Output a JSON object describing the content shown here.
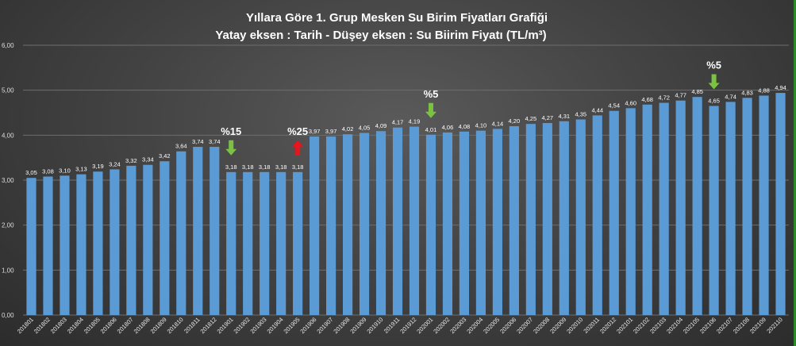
{
  "chart_data": {
    "type": "bar",
    "title": "Yıllara Göre 1. Grup Mesken Su Birim Fiyatları Grafiği",
    "subtitle": "Yatay eksen : Tarih - Düşey eksen : Su Biirim Fiyatı (TL/m³)",
    "xlabel": "Tarih",
    "ylabel": "Su Biirim Fiyatı (TL/m³)",
    "ylim": [
      0,
      6
    ],
    "yticks": [
      "0,00",
      "1,00",
      "2,00",
      "3,00",
      "4,00",
      "5,00",
      "6,00"
    ],
    "grid": true,
    "bar_color": "#5b9bd5",
    "categories": [
      "201801",
      "201802",
      "201803",
      "201804",
      "201805",
      "201806",
      "201807",
      "201808",
      "201809",
      "201810",
      "201811",
      "201812",
      "201901",
      "201902",
      "201903",
      "201904",
      "201905",
      "201906",
      "201907",
      "201908",
      "201909",
      "201910",
      "201911",
      "201912",
      "202001",
      "202002",
      "202003",
      "202004",
      "202005",
      "202006",
      "202007",
      "202008",
      "202009",
      "202010",
      "202011",
      "202012",
      "202101",
      "202102",
      "202103",
      "202104",
      "202105",
      "202106",
      "202107",
      "202108",
      "202109",
      "202110"
    ],
    "values": [
      3.05,
      3.08,
      3.1,
      3.13,
      3.19,
      3.24,
      3.32,
      3.34,
      3.42,
      3.64,
      3.74,
      3.74,
      3.18,
      3.18,
      3.18,
      3.18,
      3.18,
      3.97,
      3.97,
      4.02,
      4.05,
      4.09,
      4.17,
      4.19,
      4.01,
      4.06,
      4.08,
      4.1,
      4.14,
      4.2,
      4.25,
      4.27,
      4.31,
      4.35,
      4.44,
      4.54,
      4.6,
      4.68,
      4.72,
      4.77,
      4.85,
      4.65,
      4.74,
      4.83,
      4.88,
      4.94
    ],
    "value_labels": [
      "3,05",
      "3,08",
      "3,10",
      "3,13",
      "3,19",
      "3,24",
      "3,32",
      "3,34",
      "3,42",
      "3,64",
      "3,74",
      "3,74",
      "3,18",
      "3,18",
      "3,18",
      "3,18",
      "3,18",
      "3,97",
      "3,97",
      "4,02",
      "4,05",
      "4,09",
      "4,17",
      "4,19",
      "4,01",
      "4,06",
      "4,08",
      "4,10",
      "4,14",
      "4,20",
      "4,25",
      "4,27",
      "4,31",
      "4,35",
      "4,44",
      "4,54",
      "4,60",
      "4,68",
      "4,72",
      "4,77",
      "4,85",
      "4,65",
      "4,74",
      "4,83",
      "4,88",
      "4,94"
    ],
    "annotations": [
      {
        "text": "%15",
        "category": "201901",
        "arrow": "down",
        "color": "#7cc242"
      },
      {
        "text": "%25",
        "category": "201905",
        "arrow": "up",
        "color": "#e8141e"
      },
      {
        "text": "%5",
        "category": "202001",
        "arrow": "down",
        "color": "#7cc242"
      },
      {
        "text": "%5",
        "category": "202106",
        "arrow": "down",
        "color": "#7cc242"
      }
    ]
  }
}
